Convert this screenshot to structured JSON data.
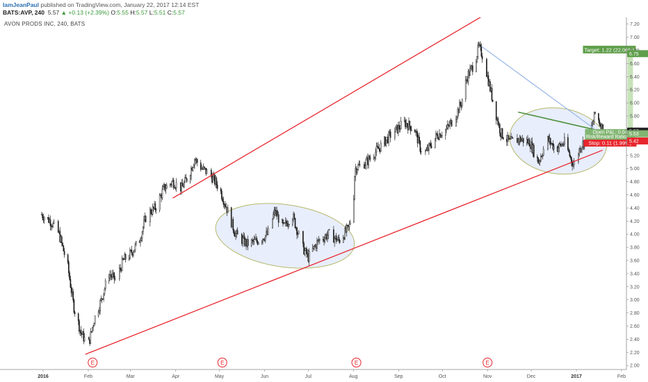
{
  "header": {
    "author": "IamJeanPaul",
    "published": " published on TradingView.com, January 22, 2017 12:14 EST",
    "symbol": "BATS:AVP, 240",
    "last": "5.57",
    "change": "▲ +0.13 (+2.39%)",
    "open_label": "O:",
    "open": "5.55",
    "high_label": "H:",
    "high": "5.57",
    "low_label": "L:",
    "low": "5.51",
    "close_label": "C:",
    "close": "5.57"
  },
  "chart_subtitle": "AVON PRODS INC, 240, BATS",
  "colors": {
    "channel": "#e8262d",
    "down_line": "#9db9e8",
    "trend_green": "#4c8f3d",
    "ellipse_fill": "#e8eefc",
    "ellipse_stroke": "#b5b86a",
    "target_box": "#5f9e4a",
    "stop_box": "#e8262d",
    "pnl_box": "#82b572",
    "candle": "#222222"
  },
  "chart_data": {
    "type": "candlestick",
    "ylim": [
      1.96,
      7.25
    ],
    "y_ticks": [
      "7.20",
      "7.00",
      "6.80",
      "6.60",
      "6.40",
      "6.20",
      "6.00",
      "5.80",
      "5.60",
      "5.40",
      "5.20",
      "5.00",
      "4.80",
      "4.60",
      "4.40",
      "4.20",
      "4.00",
      "3.80",
      "3.60",
      "3.40",
      "3.20",
      "3.00",
      "2.80",
      "2.60",
      "2.40",
      "2.20",
      "2.00"
    ],
    "x_labels": [
      "2016",
      "Feb",
      "Mar",
      "Apr",
      "May",
      "Jun",
      "Jul",
      "Aug",
      "Sep",
      "Oct",
      "Nov",
      "Dec",
      "2017",
      "Feb"
    ],
    "price_path": [
      [
        "2015-12-31",
        4.3
      ],
      [
        "2016-01-06",
        4.2
      ],
      [
        "2016-01-12",
        4.0
      ],
      [
        "2016-01-18",
        3.5
      ],
      [
        "2016-01-22",
        2.9
      ],
      [
        "2016-01-27",
        2.5
      ],
      [
        "2016-02-01",
        2.3
      ],
      [
        "2016-02-05",
        2.7
      ],
      [
        "2016-02-10",
        3.0
      ],
      [
        "2016-02-15",
        3.4
      ],
      [
        "2016-02-20",
        3.3
      ],
      [
        "2016-02-25",
        3.6
      ],
      [
        "2016-03-01",
        3.7
      ],
      [
        "2016-03-07",
        3.9
      ],
      [
        "2016-03-12",
        4.3
      ],
      [
        "2016-03-18",
        4.4
      ],
      [
        "2016-03-24",
        4.7
      ],
      [
        "2016-03-30",
        4.8
      ],
      [
        "2016-04-05",
        4.7
      ],
      [
        "2016-04-10",
        4.9
      ],
      [
        "2016-04-14",
        5.15
      ],
      [
        "2016-04-19",
        5.0
      ],
      [
        "2016-04-25",
        4.9
      ],
      [
        "2016-05-01",
        4.7
      ],
      [
        "2016-05-06",
        4.4
      ],
      [
        "2016-05-12",
        4.0
      ],
      [
        "2016-05-20",
        3.85
      ],
      [
        "2016-05-27",
        3.9
      ],
      [
        "2016-06-03",
        4.0
      ],
      [
        "2016-06-08",
        4.35
      ],
      [
        "2016-06-14",
        4.1
      ],
      [
        "2016-06-20",
        4.3
      ],
      [
        "2016-06-27",
        3.8
      ],
      [
        "2016-07-01",
        3.65
      ],
      [
        "2016-07-08",
        3.9
      ],
      [
        "2016-07-15",
        4.0
      ],
      [
        "2016-07-22",
        3.9
      ],
      [
        "2016-07-29",
        4.1
      ],
      [
        "2016-08-01",
        4.5
      ],
      [
        "2016-08-02",
        5.0
      ],
      [
        "2016-08-10",
        5.1
      ],
      [
        "2016-08-18",
        5.3
      ],
      [
        "2016-08-26",
        5.5
      ],
      [
        "2016-09-05",
        5.7
      ],
      [
        "2016-09-12",
        5.6
      ],
      [
        "2016-09-16",
        5.3
      ],
      [
        "2016-09-20",
        5.25
      ],
      [
        "2016-09-27",
        5.5
      ],
      [
        "2016-10-04",
        5.6
      ],
      [
        "2016-10-10",
        5.8
      ],
      [
        "2016-10-14",
        6.0
      ],
      [
        "2016-10-18",
        6.4
      ],
      [
        "2016-10-23",
        6.6
      ],
      [
        "2016-10-26",
        6.85
      ],
      [
        "2016-10-29",
        6.7
      ],
      [
        "2016-11-02",
        6.3
      ],
      [
        "2016-11-06",
        5.9
      ],
      [
        "2016-11-10",
        5.55
      ],
      [
        "2016-11-16",
        5.4
      ],
      [
        "2016-11-23",
        5.45
      ],
      [
        "2016-11-30",
        5.4
      ],
      [
        "2016-12-06",
        5.1
      ],
      [
        "2016-12-12",
        5.45
      ],
      [
        "2016-12-18",
        5.3
      ],
      [
        "2016-12-24",
        5.4
      ],
      [
        "2016-12-30",
        5.05
      ],
      [
        "2017-01-04",
        5.35
      ],
      [
        "2017-01-10",
        5.5
      ],
      [
        "2017-01-14",
        5.85
      ],
      [
        "2017-01-18",
        5.65
      ],
      [
        "2017-01-20",
        5.57
      ]
    ],
    "annotations": {
      "upper_channel": [
        [
          "2016-03-30",
          4.55
        ],
        [
          "2016-12-31",
          8.15
        ]
      ],
      "lower_channel": [
        [
          "2016-01-30",
          2.17
        ],
        [
          "2017-01-19",
          5.28
        ]
      ],
      "down_trendline": [
        [
          "2016-10-28",
          6.86
        ],
        [
          "2017-01-13",
          5.61
        ]
      ],
      "neck_trendline": [
        [
          "2016-11-22",
          5.86
        ],
        [
          "2017-01-18",
          5.57
        ]
      ],
      "target_label": "Target: 1.22 (22.06%)",
      "pnl_label": "Open P&L: 0.04",
      "rr_label": "Risk/Reward Ratio: 11",
      "stop_label": "Stop: 0.11 (1.99%)",
      "price_badges": [
        {
          "text": "6.75",
          "value": 6.75,
          "color": "#5f9e4a"
        },
        {
          "text": "5.57",
          "value": 5.57,
          "color": "#222222"
        },
        {
          "text": "5.53",
          "value": 5.53,
          "color": "#82b572"
        },
        {
          "text": "5.42",
          "value": 5.42,
          "color": "#e8262d"
        }
      ],
      "earnings_marker": "E",
      "earnings_dates": [
        "2016-02-04",
        "2016-05-03",
        "2016-08-03",
        "2016-11-01"
      ]
    }
  }
}
